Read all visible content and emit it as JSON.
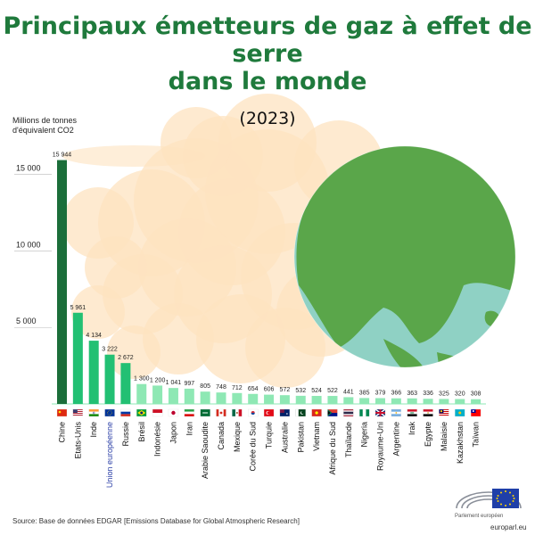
{
  "title": {
    "line1": "Principaux émetteurs de gaz à effet de",
    "line2": "serre",
    "line3": "dans le monde"
  },
  "subtitle": "(2023)",
  "ylabel": {
    "line1": "Millions de tonnes",
    "line2": "d'équivalent CO2"
  },
  "source": "Source: Base de données EDGAR [Emissions Database for Global Atmospheric Research]",
  "logo_text": "Parlement européen",
  "site": "europarl.eu",
  "colors": {
    "title": "#1f7a3c",
    "dark_bar": "#1b6e3a",
    "mid_bar": "#22c073",
    "light_bar": "#8ee8b4",
    "eu_label": "#2b3fa6",
    "smoke": "#fde3c0",
    "globe_land": "#5aa64a",
    "globe_ocean": "#8fd1c4"
  },
  "chart_data": {
    "type": "bar",
    "title": "Principaux émetteurs de gaz à effet de serre dans le monde",
    "subtitle": "(2023)",
    "ylabel": "Millions de tonnes d'équivalent CO2",
    "ylim": [
      0,
      18000
    ],
    "yticks": [
      5000,
      10000,
      15000
    ],
    "ytick_labels": [
      "5 000",
      "10 000",
      "15 000"
    ],
    "categories": [
      "Chine",
      "Etats-Unis",
      "Inde",
      "Union européenne",
      "Russie",
      "Brésil",
      "Indonésie",
      "Japon",
      "Iran",
      "Arabie Saoudite",
      "Canada",
      "Mexique",
      "Corée du Sud",
      "Turquie",
      "Australie",
      "Pakistan",
      "Vietnam",
      "Afrique du Sud",
      "Thaïlande",
      "Nigeria",
      "Royaume-Uni",
      "Argentine",
      "Irak",
      "Egypte",
      "Malaisie",
      "Kazakhstan",
      "Taïwan"
    ],
    "values": [
      15944,
      5961,
      4134,
      3222,
      2672,
      1300,
      1200,
      1041,
      997,
      805,
      748,
      712,
      654,
      606,
      572,
      532,
      524,
      522,
      441,
      385,
      379,
      366,
      363,
      336,
      325,
      320,
      308
    ],
    "value_labels": [
      "15 944",
      "5 961",
      "4 134",
      "3 222",
      "2 672",
      "1 300",
      "1 200",
      "1 041",
      "997",
      "805",
      "748",
      "712",
      "654",
      "606",
      "572",
      "532",
      "524",
      "522",
      "441",
      "385",
      "379",
      "366",
      "363",
      "336",
      "325",
      "320",
      "308"
    ],
    "bar_color_groups": [
      "dark",
      "mid",
      "mid",
      "mid",
      "mid",
      "light",
      "light",
      "light",
      "light",
      "light",
      "light",
      "light",
      "light",
      "light",
      "light",
      "light",
      "light",
      "light",
      "light",
      "light",
      "light",
      "light",
      "light",
      "light",
      "light",
      "light",
      "light"
    ],
    "flag_icons": [
      "china-flag-icon",
      "usa-flag-icon",
      "india-flag-icon",
      "eu-flag-icon",
      "russia-flag-icon",
      "brazil-flag-icon",
      "indonesia-flag-icon",
      "japan-flag-icon",
      "iran-flag-icon",
      "saudi-flag-icon",
      "canada-flag-icon",
      "mexico-flag-icon",
      "korea-flag-icon",
      "turkey-flag-icon",
      "australia-flag-icon",
      "pakistan-flag-icon",
      "vietnam-flag-icon",
      "southafrica-flag-icon",
      "thailand-flag-icon",
      "nigeria-flag-icon",
      "uk-flag-icon",
      "argentina-flag-icon",
      "iraq-flag-icon",
      "egypt-flag-icon",
      "malaysia-flag-icon",
      "kazakhstan-flag-icon",
      "taiwan-flag-icon"
    ],
    "grid": false,
    "legend": "none"
  }
}
